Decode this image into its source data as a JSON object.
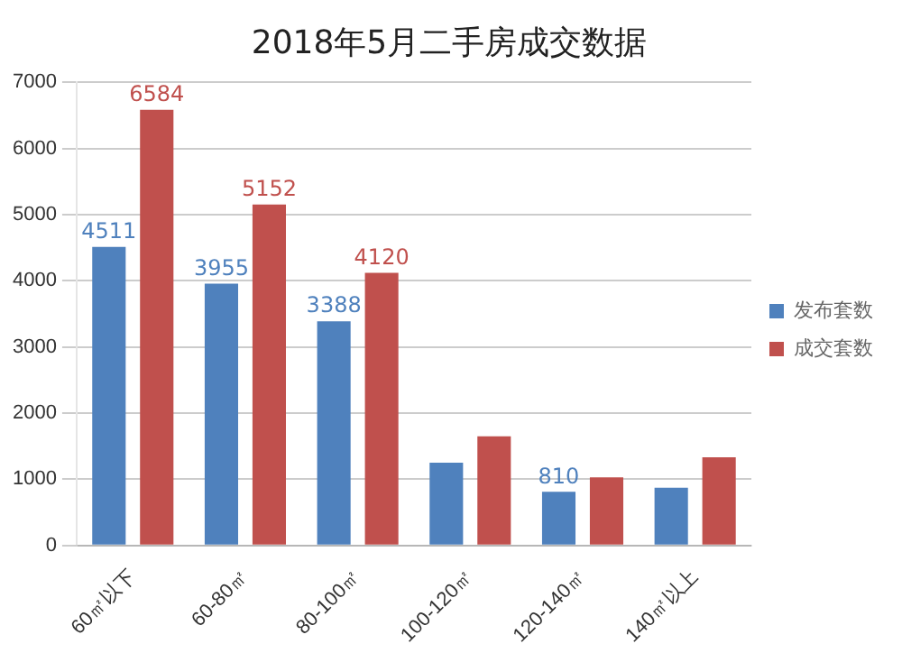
{
  "chart_data": {
    "type": "bar",
    "title": "2018年5月二手房成交数据",
    "categories": [
      "60㎡以下",
      "60-80㎡",
      "80-100㎡",
      "100-120㎡",
      "120-140㎡",
      "140㎡以上"
    ],
    "series": [
      {
        "name": "发布套数",
        "color": "#4f81bd",
        "values": [
          4511,
          3955,
          3388,
          1250,
          810,
          870
        ],
        "value_labels": [
          "4511",
          "3955",
          "3388",
          null,
          "810",
          null
        ]
      },
      {
        "name": "成交套数",
        "color": "#c0504d",
        "values": [
          6584,
          5152,
          4120,
          1650,
          1030,
          1330
        ],
        "value_labels": [
          "6584",
          "5152",
          "4120",
          null,
          null,
          null
        ]
      }
    ],
    "ylim": [
      0,
      7000
    ],
    "yticks": [
      0,
      1000,
      2000,
      3000,
      4000,
      5000,
      6000,
      7000
    ],
    "grid": "y",
    "legend": "right"
  }
}
